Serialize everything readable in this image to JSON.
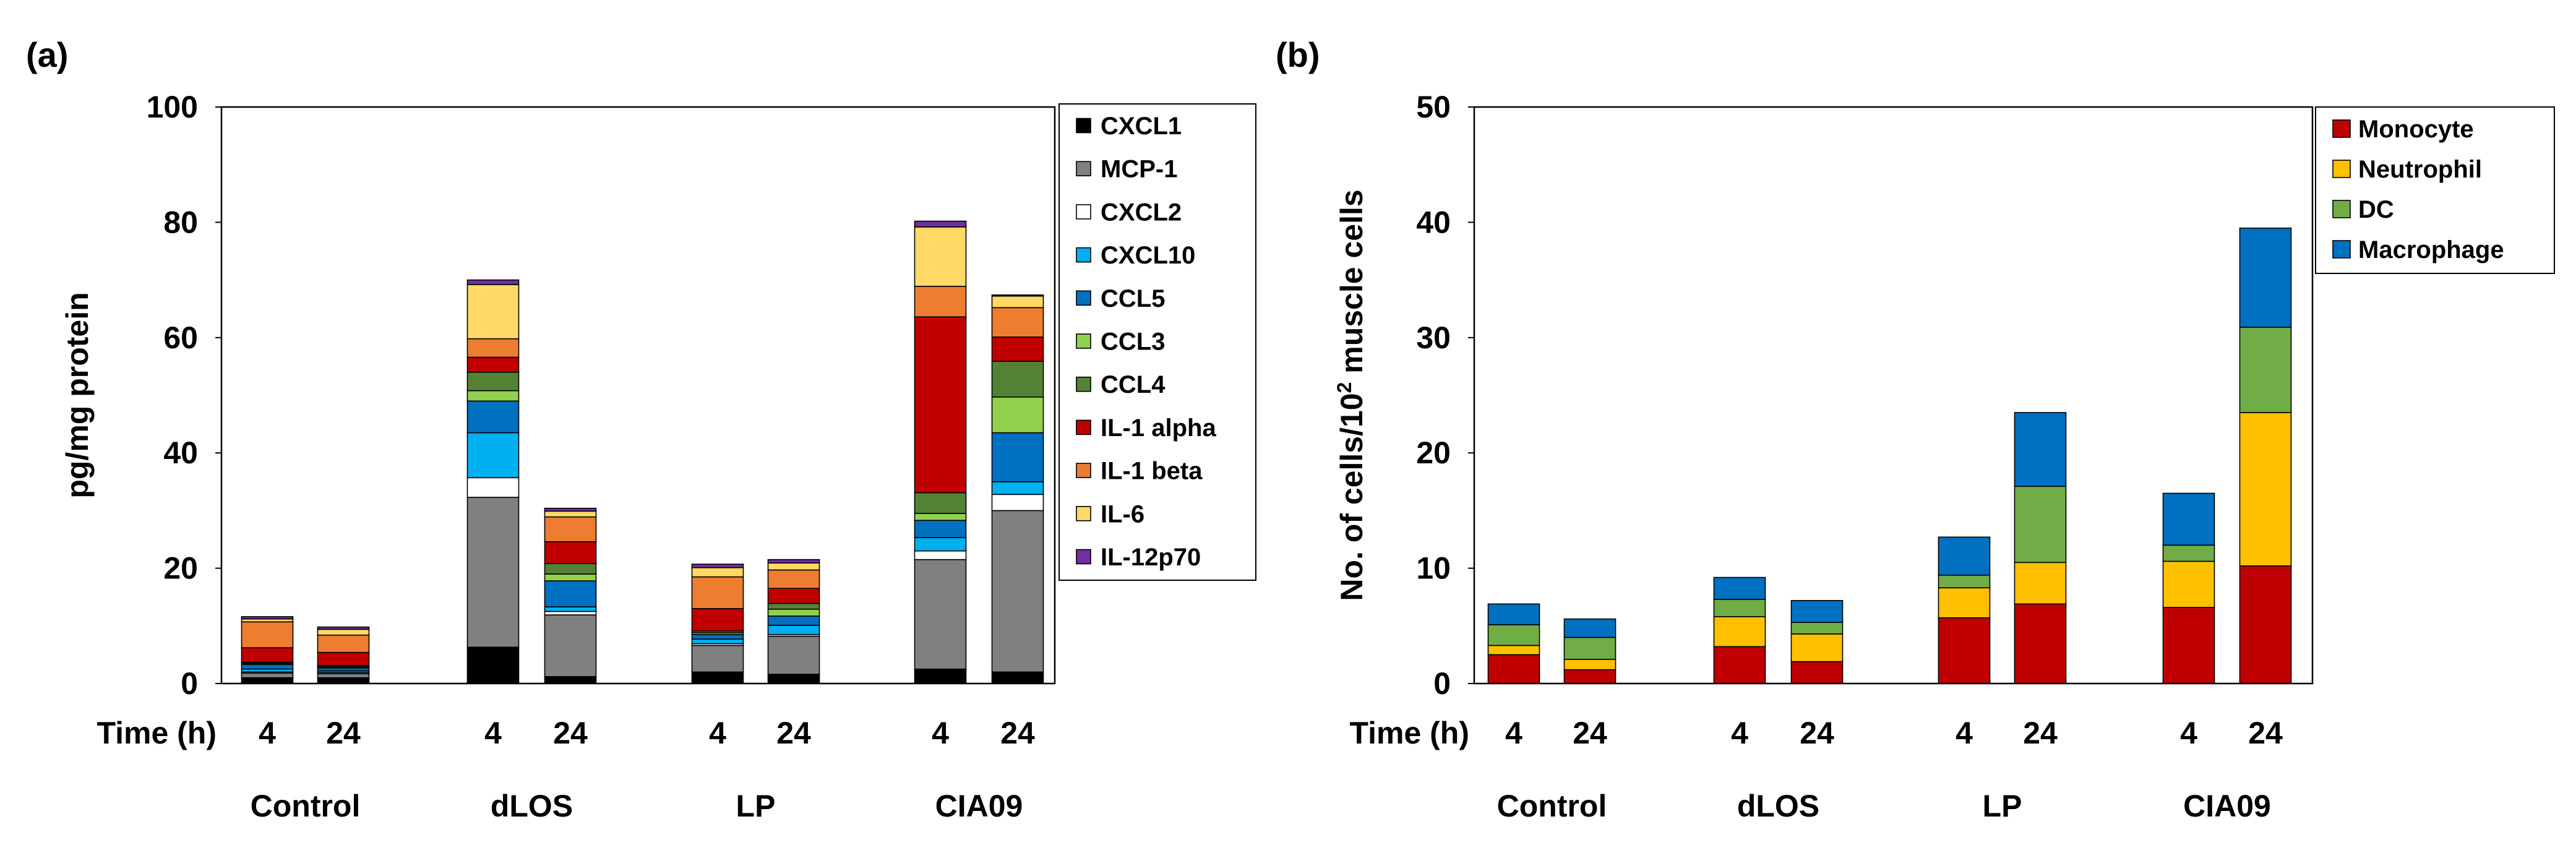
{
  "chart_data": [
    {
      "panel": "(a)",
      "type": "bar",
      "stacked": true,
      "ylabel": "pg/mg protein",
      "ylim": [
        0,
        100
      ],
      "yticks": [
        "0",
        "20",
        "40",
        "60",
        "80",
        "100"
      ],
      "xlabel": "Time (h)",
      "groups": [
        "Control",
        "dLOS",
        "LP",
        "CIA09"
      ],
      "times": [
        "4",
        "24"
      ],
      "legend_position": "right",
      "series": [
        {
          "name": "CXCL1",
          "color": "#000000",
          "values": [
            1.0,
            1.0,
            6.3,
            1.2,
            2.0,
            1.6,
            2.5,
            2.0
          ]
        },
        {
          "name": "MCP-1",
          "color": "#808080",
          "values": [
            0.8,
            0.7,
            26.0,
            10.7,
            4.6,
            6.6,
            19.0,
            28.0
          ]
        },
        {
          "name": "CXCL2",
          "color": "#ffffff",
          "values": [
            0.2,
            0.2,
            3.4,
            0.6,
            0.3,
            0.3,
            1.5,
            2.8
          ]
        },
        {
          "name": "CXCL10",
          "color": "#00b0f0",
          "values": [
            0.5,
            0.3,
            7.8,
            0.8,
            0.8,
            1.6,
            2.3,
            2.2
          ]
        },
        {
          "name": "CCL5",
          "color": "#0070c0",
          "values": [
            0.8,
            0.5,
            5.5,
            4.5,
            0.8,
            1.6,
            3.0,
            8.5
          ]
        },
        {
          "name": "CCL3",
          "color": "#92d050",
          "values": [
            0.2,
            0.2,
            1.8,
            1.2,
            0.3,
            1.2,
            1.2,
            6.2
          ]
        },
        {
          "name": "CCL4",
          "color": "#548235",
          "values": [
            0.2,
            0.2,
            3.2,
            1.8,
            0.3,
            1.0,
            3.6,
            6.2
          ]
        },
        {
          "name": "IL-1 alpha",
          "color": "#c00000",
          "values": [
            2.5,
            2.3,
            2.6,
            3.8,
            3.9,
            2.6,
            30.5,
            4.2
          ]
        },
        {
          "name": "IL-1 beta",
          "color": "#ed7d31",
          "values": [
            4.5,
            3.0,
            3.2,
            4.3,
            5.5,
            3.2,
            5.3,
            5.1
          ]
        },
        {
          "name": "IL-6",
          "color": "#ffd966",
          "values": [
            0.5,
            1.0,
            9.4,
            1.0,
            1.6,
            1.2,
            10.3,
            2.0
          ]
        },
        {
          "name": "IL-12p70",
          "color": "#7030a0",
          "values": [
            0.4,
            0.4,
            0.8,
            0.5,
            0.6,
            0.6,
            1.0,
            0.2
          ]
        }
      ]
    },
    {
      "panel": "(b)",
      "type": "bar",
      "stacked": true,
      "ylabel": "No. of cells/10² muscle cells",
      "ylabel_parts": [
        "No. of cells/10",
        "2",
        " muscle cells"
      ],
      "ylim": [
        0,
        50
      ],
      "yticks": [
        "0",
        "10",
        "20",
        "30",
        "40",
        "50"
      ],
      "xlabel": "Time (h)",
      "groups": [
        "Control",
        "dLOS",
        "LP",
        "CIA09"
      ],
      "times": [
        "4",
        "24"
      ],
      "legend_position": "top-right",
      "series": [
        {
          "name": "Monocyte",
          "color": "#c00000",
          "values": [
            2.5,
            1.2,
            3.2,
            1.9,
            5.7,
            6.9,
            6.6,
            10.2
          ]
        },
        {
          "name": "Neutrophil",
          "color": "#ffc000",
          "values": [
            0.8,
            0.9,
            2.6,
            2.4,
            2.6,
            3.6,
            4.0,
            13.3
          ]
        },
        {
          "name": "DC",
          "color": "#70ad47",
          "values": [
            1.8,
            1.9,
            1.5,
            1.0,
            1.1,
            6.6,
            1.4,
            7.4
          ]
        },
        {
          "name": "Macrophage",
          "color": "#0070c0",
          "values": [
            1.8,
            1.6,
            1.9,
            1.9,
            3.3,
            6.4,
            4.5,
            8.6
          ]
        }
      ]
    }
  ]
}
